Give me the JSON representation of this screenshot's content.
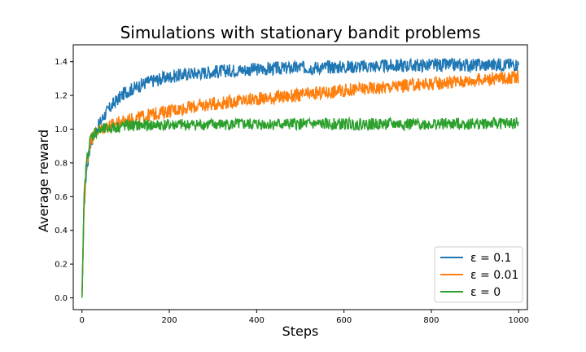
{
  "chart_data": {
    "type": "line",
    "title": "Simulations with stationary bandit problems",
    "xlabel": "Steps",
    "ylabel": "Average reward",
    "xlim": [
      -20,
      1020
    ],
    "ylim": [
      -0.07,
      1.5
    ],
    "x_ticks": [
      0,
      200,
      400,
      600,
      800,
      1000
    ],
    "x_tick_labels": [
      "0",
      "200",
      "400",
      "600",
      "800",
      "1000"
    ],
    "y_ticks": [
      0.0,
      0.2,
      0.4,
      0.6,
      0.8,
      1.0,
      1.2,
      1.4
    ],
    "y_tick_labels": [
      "0.0",
      "0.2",
      "0.4",
      "0.6",
      "0.8",
      "1.0",
      "1.2",
      "1.4"
    ],
    "grid": false,
    "legend_position": "lower-right",
    "series": [
      {
        "name": "ε = 0.1",
        "color": "#1f77b4",
        "x": [
          0,
          5,
          10,
          20,
          30,
          50,
          75,
          100,
          150,
          200,
          250,
          300,
          350,
          400,
          450,
          500,
          600,
          700,
          800,
          900,
          1000
        ],
        "values": [
          0.0,
          0.55,
          0.75,
          0.92,
          0.98,
          1.08,
          1.16,
          1.22,
          1.28,
          1.31,
          1.33,
          1.34,
          1.35,
          1.355,
          1.36,
          1.365,
          1.37,
          1.375,
          1.38,
          1.38,
          1.385
        ],
        "noise": 0.025
      },
      {
        "name": "ε = 0.01",
        "color": "#ff7f0e",
        "x": [
          0,
          5,
          10,
          20,
          30,
          50,
          75,
          100,
          150,
          200,
          300,
          400,
          500,
          600,
          700,
          800,
          900,
          1000
        ],
        "values": [
          0.0,
          0.55,
          0.78,
          0.94,
          0.98,
          1.01,
          1.03,
          1.05,
          1.08,
          1.11,
          1.15,
          1.18,
          1.2,
          1.23,
          1.25,
          1.27,
          1.29,
          1.31
        ],
        "noise": 0.025
      },
      {
        "name": "ε = 0",
        "color": "#2ca02c",
        "x": [
          0,
          5,
          10,
          20,
          30,
          50,
          100,
          200,
          400,
          600,
          800,
          1000
        ],
        "values": [
          0.0,
          0.6,
          0.8,
          0.95,
          0.98,
          1.0,
          1.02,
          1.025,
          1.03,
          1.03,
          1.03,
          1.035
        ],
        "noise": 0.022
      }
    ]
  }
}
